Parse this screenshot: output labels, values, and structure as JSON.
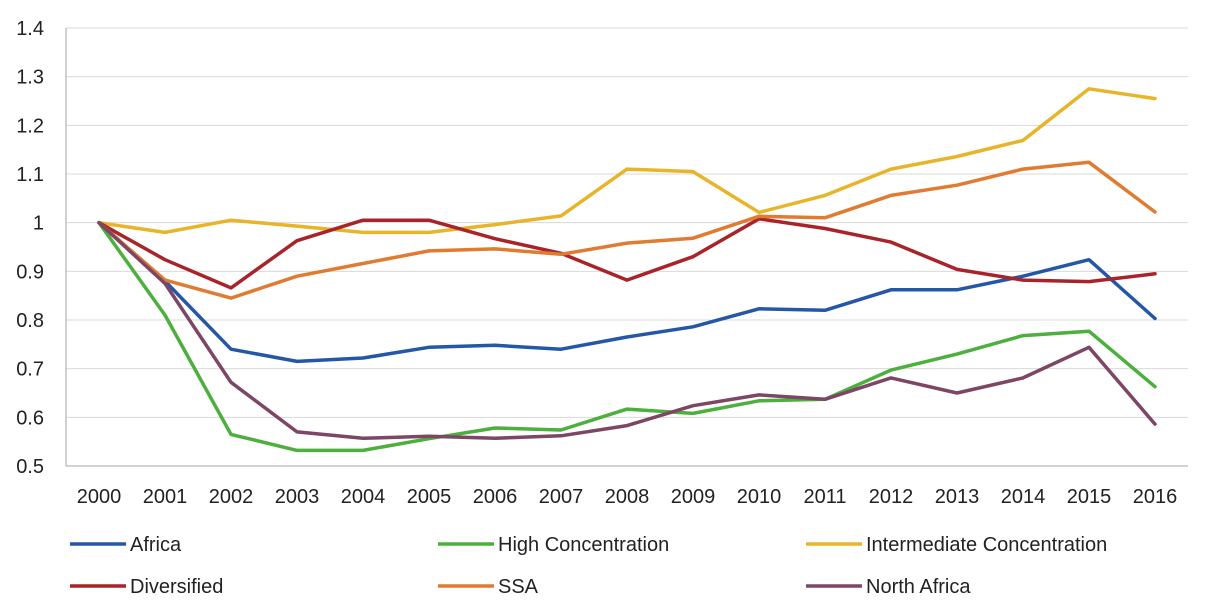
{
  "chart_data": {
    "type": "line",
    "title": "",
    "xlabel": "",
    "ylabel": "",
    "x": [
      "2000",
      "2001",
      "2002",
      "2003",
      "2004",
      "2005",
      "2006",
      "2007",
      "2008",
      "2009",
      "2010",
      "2011",
      "2012",
      "2013",
      "2014",
      "2015",
      "2016"
    ],
    "ylim": [
      0.5,
      1.4
    ],
    "yticks": [
      0.5,
      0.6,
      0.7,
      0.8,
      0.9,
      1,
      1.1,
      1.2,
      1.3,
      1.4
    ],
    "ytick_labels": [
      "0.5",
      "0.6",
      "0.7",
      "0.8",
      "0.9",
      "1",
      "1.1",
      "1.2",
      "1.3",
      "1.4"
    ],
    "grid": "horizontal",
    "legend_position": "bottom",
    "series": [
      {
        "name": "Africa",
        "color": "#2557a7",
        "values": [
          1.0,
          0.88,
          0.74,
          0.715,
          0.722,
          0.744,
          0.748,
          0.74,
          0.765,
          0.786,
          0.823,
          0.82,
          0.862,
          0.862,
          0.89,
          0.924,
          0.803
        ]
      },
      {
        "name": "High Concentration",
        "color": "#4caf3e",
        "values": [
          1.0,
          0.81,
          0.565,
          0.532,
          0.532,
          0.556,
          0.578,
          0.574,
          0.617,
          0.608,
          0.634,
          0.637,
          0.697,
          0.73,
          0.768,
          0.777,
          0.663
        ]
      },
      {
        "name": "Intermediate Concentration",
        "color": "#e8b52a",
        "values": [
          1.0,
          0.98,
          1.005,
          0.993,
          0.98,
          0.98,
          0.996,
          1.014,
          1.11,
          1.105,
          1.021,
          1.056,
          1.11,
          1.136,
          1.169,
          1.275,
          1.255
        ]
      },
      {
        "name": "Diversified",
        "color": "#a9242a",
        "values": [
          1.0,
          0.924,
          0.866,
          0.963,
          1.005,
          1.005,
          0.967,
          0.937,
          0.882,
          0.93,
          1.008,
          0.988,
          0.96,
          0.904,
          0.882,
          0.879,
          0.895
        ]
      },
      {
        "name": "SSA",
        "color": "#e07b32",
        "values": [
          1.0,
          0.882,
          0.845,
          0.89,
          0.916,
          0.942,
          0.946,
          0.935,
          0.958,
          0.968,
          1.013,
          1.01,
          1.056,
          1.077,
          1.11,
          1.124,
          1.022
        ]
      },
      {
        "name": "North Africa",
        "color": "#7d4665",
        "values": [
          1.0,
          0.875,
          0.672,
          0.57,
          0.557,
          0.561,
          0.557,
          0.562,
          0.583,
          0.624,
          0.646,
          0.637,
          0.681,
          0.65,
          0.681,
          0.744,
          0.586
        ]
      }
    ]
  }
}
